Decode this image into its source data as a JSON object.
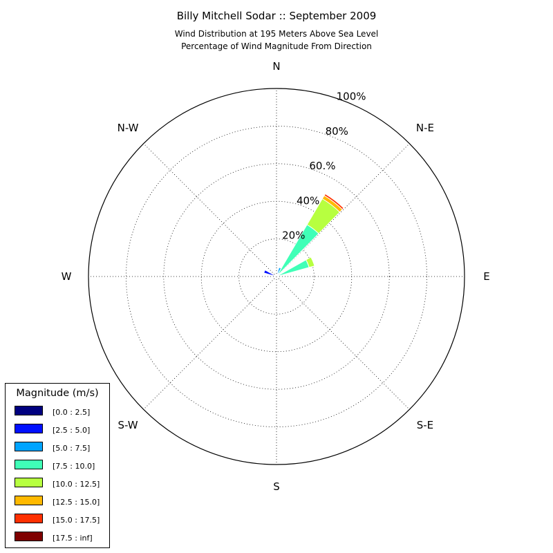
{
  "chart_data": {
    "type": "windrose",
    "title": "Billy Mitchell Sodar :: September 2009",
    "subtitle_lines": [
      "Wind Distribution at 195 Meters Above Sea Level",
      "Percentage of Wind Magnitude From Direction"
    ],
    "directions": [
      "N",
      "N-E",
      "E",
      "S-E",
      "S",
      "S-W",
      "W",
      "N-W"
    ],
    "rlim": [
      0,
      100
    ],
    "ring_labels": [
      "20%",
      "40%",
      "60.%",
      "80%",
      "100%"
    ],
    "ring_values": [
      20,
      40,
      60,
      80,
      100
    ],
    "grid": true,
    "legend": {
      "title": "Magnitude (m/s)",
      "placement": "lower-left",
      "bins": [
        {
          "label": "[0.0 : 2.5]",
          "color": "#00007f"
        },
        {
          "label": "[2.5 : 5.0]",
          "color": "#0010ff"
        },
        {
          "label": "[5.0 : 7.5]",
          "color": "#00a4ff"
        },
        {
          "label": "[7.5 : 10.0]",
          "color": "#40ffb7"
        },
        {
          "label": "[10.0 : 12.5]",
          "color": "#b7ff40"
        },
        {
          "label": "[12.5 : 15.0]",
          "color": "#ffb900"
        },
        {
          "label": "[15.0 : 17.5]",
          "color": "#ff3000"
        },
        {
          "label": "[17.5 : inf]",
          "color": "#7f0000"
        }
      ]
    },
    "sectors": [
      {
        "direction_deg": 22.5,
        "cumulative": [
          0,
          1,
          5,
          5,
          5,
          5,
          5,
          5
        ]
      },
      {
        "direction_deg": 37.5,
        "cumulative": [
          0,
          1,
          2,
          32,
          48,
          50,
          51,
          51
        ]
      },
      {
        "direction_deg": 67.5,
        "cumulative": [
          0,
          0,
          0,
          18,
          21,
          21,
          21,
          21
        ]
      },
      {
        "direction_deg": 292.5,
        "cumulative": [
          0,
          7,
          7,
          7,
          7,
          7,
          7,
          7
        ]
      }
    ]
  }
}
